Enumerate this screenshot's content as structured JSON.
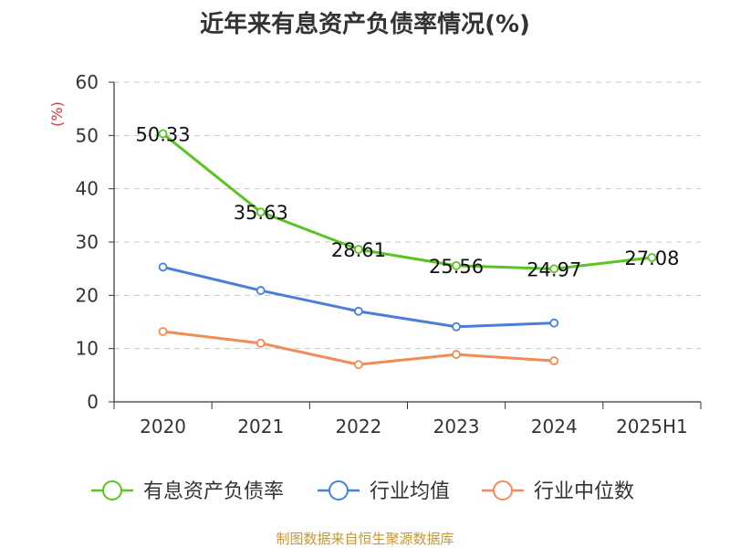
{
  "chart_data": {
    "type": "line",
    "title": "近年来有息资产负债率情况(%)",
    "ylabel": "(%)",
    "xlabel": "",
    "ylim": [
      0,
      60
    ],
    "yticks": [
      0,
      10,
      20,
      30,
      40,
      50,
      60
    ],
    "categories": [
      "2020",
      "2021",
      "2022",
      "2023",
      "2024",
      "2025H1"
    ],
    "grid": "horizontal dashed",
    "legend_position": "bottom",
    "series": [
      {
        "name": "有息资产负债率",
        "color": "#5ac420",
        "values": [
          50.33,
          35.63,
          28.61,
          25.56,
          24.97,
          27.08
        ],
        "labels": [
          "50.33",
          "35.63",
          "28.61",
          "25.56",
          "24.97",
          "27.08"
        ]
      },
      {
        "name": "行业均值",
        "color": "#4a7fd9",
        "values": [
          25.3,
          20.9,
          17.0,
          14.1,
          14.8,
          null
        ]
      },
      {
        "name": "行业中位数",
        "color": "#f38b56",
        "values": [
          13.2,
          11.0,
          7.0,
          8.9,
          7.7,
          null
        ]
      }
    ]
  },
  "source_note": "制图数据来自恒生聚源数据库"
}
